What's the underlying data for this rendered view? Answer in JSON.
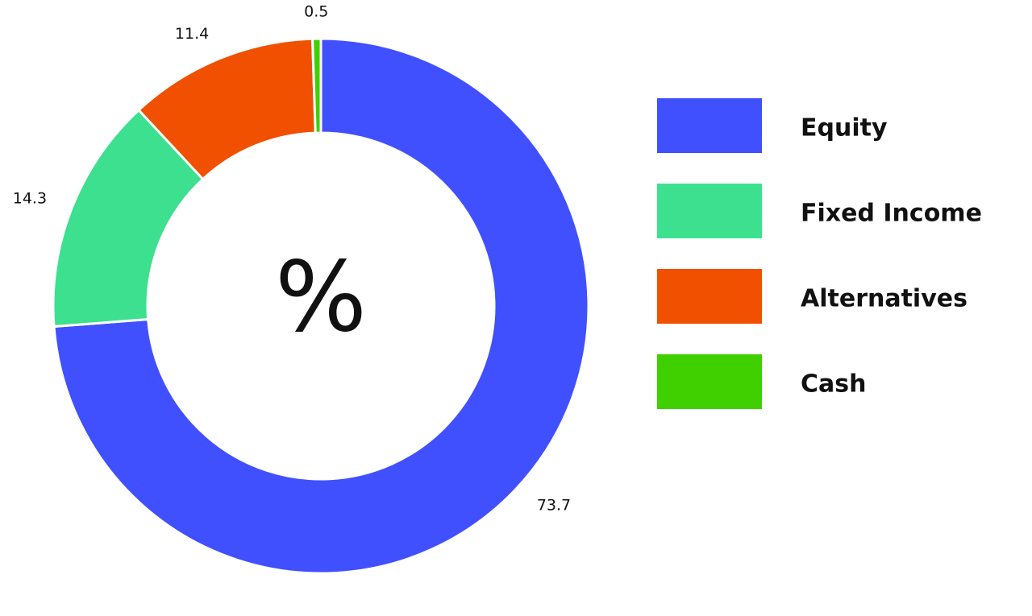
{
  "chart_data": {
    "type": "donut",
    "center_label": "%",
    "categories": [
      "Equity",
      "Fixed Income",
      "Alternatives",
      "Cash"
    ],
    "values": [
      73.7,
      14.3,
      11.4,
      0.5
    ],
    "colors": [
      "#4050ff",
      "#3ce08f",
      "#f05000",
      "#40d000"
    ],
    "legend": "right"
  }
}
